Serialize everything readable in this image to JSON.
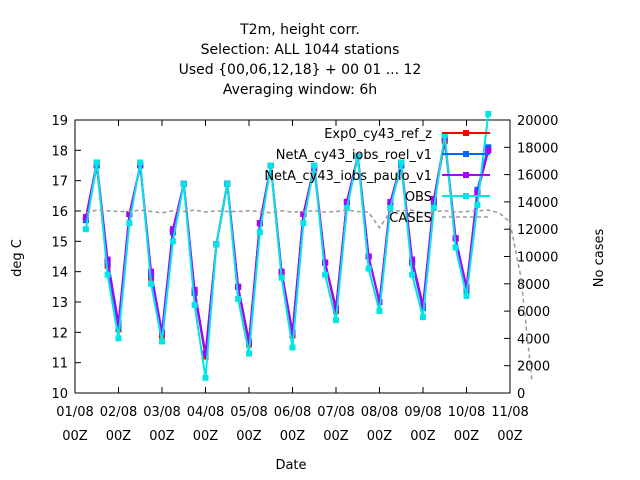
{
  "chart_data": {
    "type": "line",
    "title_lines": [
      "T2m, height corr.",
      "Selection: ALL    1044 stations",
      "Used {00,06,12,18} + 00 01 ... 12",
      "Averaging window:  6h"
    ],
    "xlabel": "Date",
    "ylabel": "deg C",
    "y2label": "No cases",
    "x_ticks": [
      {
        "date": "01/08",
        "hour": "00Z"
      },
      {
        "date": "02/08",
        "hour": "00Z"
      },
      {
        "date": "03/08",
        "hour": "00Z"
      },
      {
        "date": "04/08",
        "hour": "00Z"
      },
      {
        "date": "05/08",
        "hour": "00Z"
      },
      {
        "date": "06/08",
        "hour": "00Z"
      },
      {
        "date": "07/08",
        "hour": "00Z"
      },
      {
        "date": "08/08",
        "hour": "00Z"
      },
      {
        "date": "09/08",
        "hour": "00Z"
      },
      {
        "date": "10/08",
        "hour": "00Z"
      },
      {
        "date": "11/08",
        "hour": "00Z"
      }
    ],
    "x_range_days": [
      0,
      10
    ],
    "y_ticks": [
      "10",
      "11",
      "12",
      "13",
      "14",
      "15",
      "16",
      "17",
      "18",
      "19"
    ],
    "ylim": [
      10,
      19
    ],
    "y2_ticks": [
      "0",
      "2000",
      "4000",
      "6000",
      "8000",
      "10000",
      "12000",
      "14000",
      "16000",
      "18000",
      "20000"
    ],
    "y2lim": [
      0,
      20000
    ],
    "grid": false,
    "legend_position": "top-right",
    "x_days": [
      0.25,
      0.5,
      0.75,
      1.0,
      1.25,
      1.5,
      1.75,
      2.0,
      2.25,
      2.5,
      2.75,
      3.0,
      3.25,
      3.5,
      3.75,
      4.0,
      4.25,
      4.5,
      4.75,
      5.0,
      5.25,
      5.5,
      5.75,
      6.0,
      6.25,
      6.5,
      6.75,
      7.0,
      7.25,
      7.5,
      7.75,
      8.0,
      8.25,
      8.5,
      8.75,
      9.0,
      9.25,
      9.5,
      9.75,
      10.0,
      10.25,
      10.5
    ],
    "series": [
      {
        "name": "Exp0_cy43_ref_z",
        "color": "#ff0000",
        "marker": "square",
        "axis": "left",
        "values": [
          15.7,
          17.5,
          14.2,
          12.1,
          15.9,
          17.5,
          13.8,
          11.9,
          15.3,
          16.9,
          13.3,
          11.2,
          14.9,
          16.9,
          13.5,
          11.6,
          15.6,
          17.5,
          13.9,
          11.9,
          15.9,
          17.5,
          14.3,
          12.7,
          16.3,
          17.8,
          14.5,
          13.0,
          16.2,
          17.5,
          14.3,
          12.8,
          16.3,
          18.3,
          15.1,
          13.4,
          16.6,
          18.0
        ]
      },
      {
        "name": "NetA_cy43_iobs_roel_v1",
        "color": "#0066ff",
        "marker": "square",
        "axis": "left",
        "values": [
          15.7,
          17.5,
          14.3,
          12.2,
          15.9,
          17.5,
          13.9,
          12.0,
          15.3,
          16.9,
          13.3,
          11.3,
          14.9,
          16.9,
          13.5,
          11.7,
          15.6,
          17.5,
          14.0,
          12.0,
          15.9,
          17.4,
          14.3,
          12.8,
          16.3,
          17.8,
          14.5,
          13.0,
          16.2,
          17.5,
          14.3,
          12.8,
          16.3,
          18.4,
          15.1,
          13.4,
          16.7,
          18.1
        ]
      },
      {
        "name": "NetA_cy43_iobs_paulo_v1",
        "color": "#aa00ff",
        "marker": "square",
        "axis": "left",
        "values": [
          15.8,
          17.6,
          14.4,
          12.3,
          15.9,
          17.5,
          14.0,
          12.0,
          15.4,
          16.9,
          13.4,
          11.3,
          14.9,
          16.9,
          13.5,
          11.7,
          15.6,
          17.5,
          14.0,
          12.0,
          15.9,
          17.4,
          14.3,
          12.8,
          16.3,
          17.8,
          14.5,
          13.0,
          16.3,
          17.6,
          14.4,
          12.9,
          16.4,
          18.4,
          15.1,
          13.5,
          16.6,
          18.0
        ]
      },
      {
        "name": "OBS",
        "color": "#00e6e6",
        "marker": "square",
        "axis": "left",
        "values": [
          15.4,
          17.6,
          13.9,
          11.8,
          15.6,
          17.6,
          13.6,
          11.7,
          15.0,
          16.9,
          12.9,
          10.5,
          14.9,
          16.9,
          13.1,
          11.3,
          15.3,
          17.5,
          13.8,
          11.5,
          15.6,
          17.5,
          13.9,
          12.4,
          16.1,
          17.8,
          14.1,
          12.7,
          16.1,
          17.6,
          13.9,
          12.5,
          16.1,
          18.5,
          14.8,
          13.2,
          16.2,
          19.2
        ]
      },
      {
        "name": "CASES",
        "color": "#999999",
        "marker": "none",
        "dashed": true,
        "axis": "right",
        "values": [
          13200,
          13400,
          13350,
          13300,
          13300,
          13400,
          13300,
          13200,
          13350,
          13300,
          13400,
          13250,
          13350,
          13300,
          13300,
          13350,
          13300,
          13200,
          13350,
          13250,
          13300,
          13350,
          13250,
          13300,
          13400,
          13300,
          13250,
          12100,
          13300,
          13350,
          13400,
          13200,
          13300,
          13350,
          13250,
          13300,
          13350,
          13400,
          13200,
          12500,
          8500,
          1000
        ]
      }
    ]
  }
}
